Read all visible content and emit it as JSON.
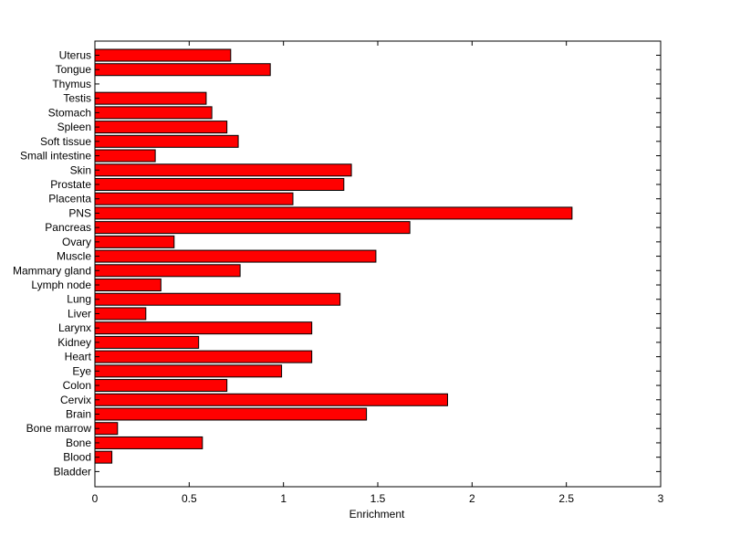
{
  "chart_data": {
    "type": "bar",
    "orientation": "horizontal",
    "title": "",
    "xlabel": "Enrichment",
    "ylabel": "",
    "xlim": [
      0,
      3
    ],
    "xticks": [
      "0",
      "0.5",
      "1",
      "1.5",
      "2",
      "2.5",
      "3"
    ],
    "grid": false,
    "bar_color": "#ff0000",
    "categories": [
      "Uterus",
      "Tongue",
      "Thymus",
      "Testis",
      "Stomach",
      "Spleen",
      "Soft tissue",
      "Small intestine",
      "Skin",
      "Prostate",
      "Placenta",
      "PNS",
      "Pancreas",
      "Ovary",
      "Muscle",
      "Mammary gland",
      "Lymph node",
      "Lung",
      "Liver",
      "Larynx",
      "Kidney",
      "Heart",
      "Eye",
      "Colon",
      "Cervix",
      "Brain",
      "Bone marrow",
      "Bone",
      "Blood",
      "Bladder"
    ],
    "values": [
      0.72,
      0.93,
      0.0,
      0.59,
      0.62,
      0.7,
      0.76,
      0.32,
      1.36,
      1.32,
      1.05,
      2.53,
      1.67,
      0.42,
      1.49,
      0.77,
      0.35,
      1.3,
      0.27,
      1.15,
      0.55,
      1.15,
      0.99,
      0.7,
      1.87,
      1.44,
      0.12,
      0.57,
      0.09,
      0.0
    ]
  }
}
